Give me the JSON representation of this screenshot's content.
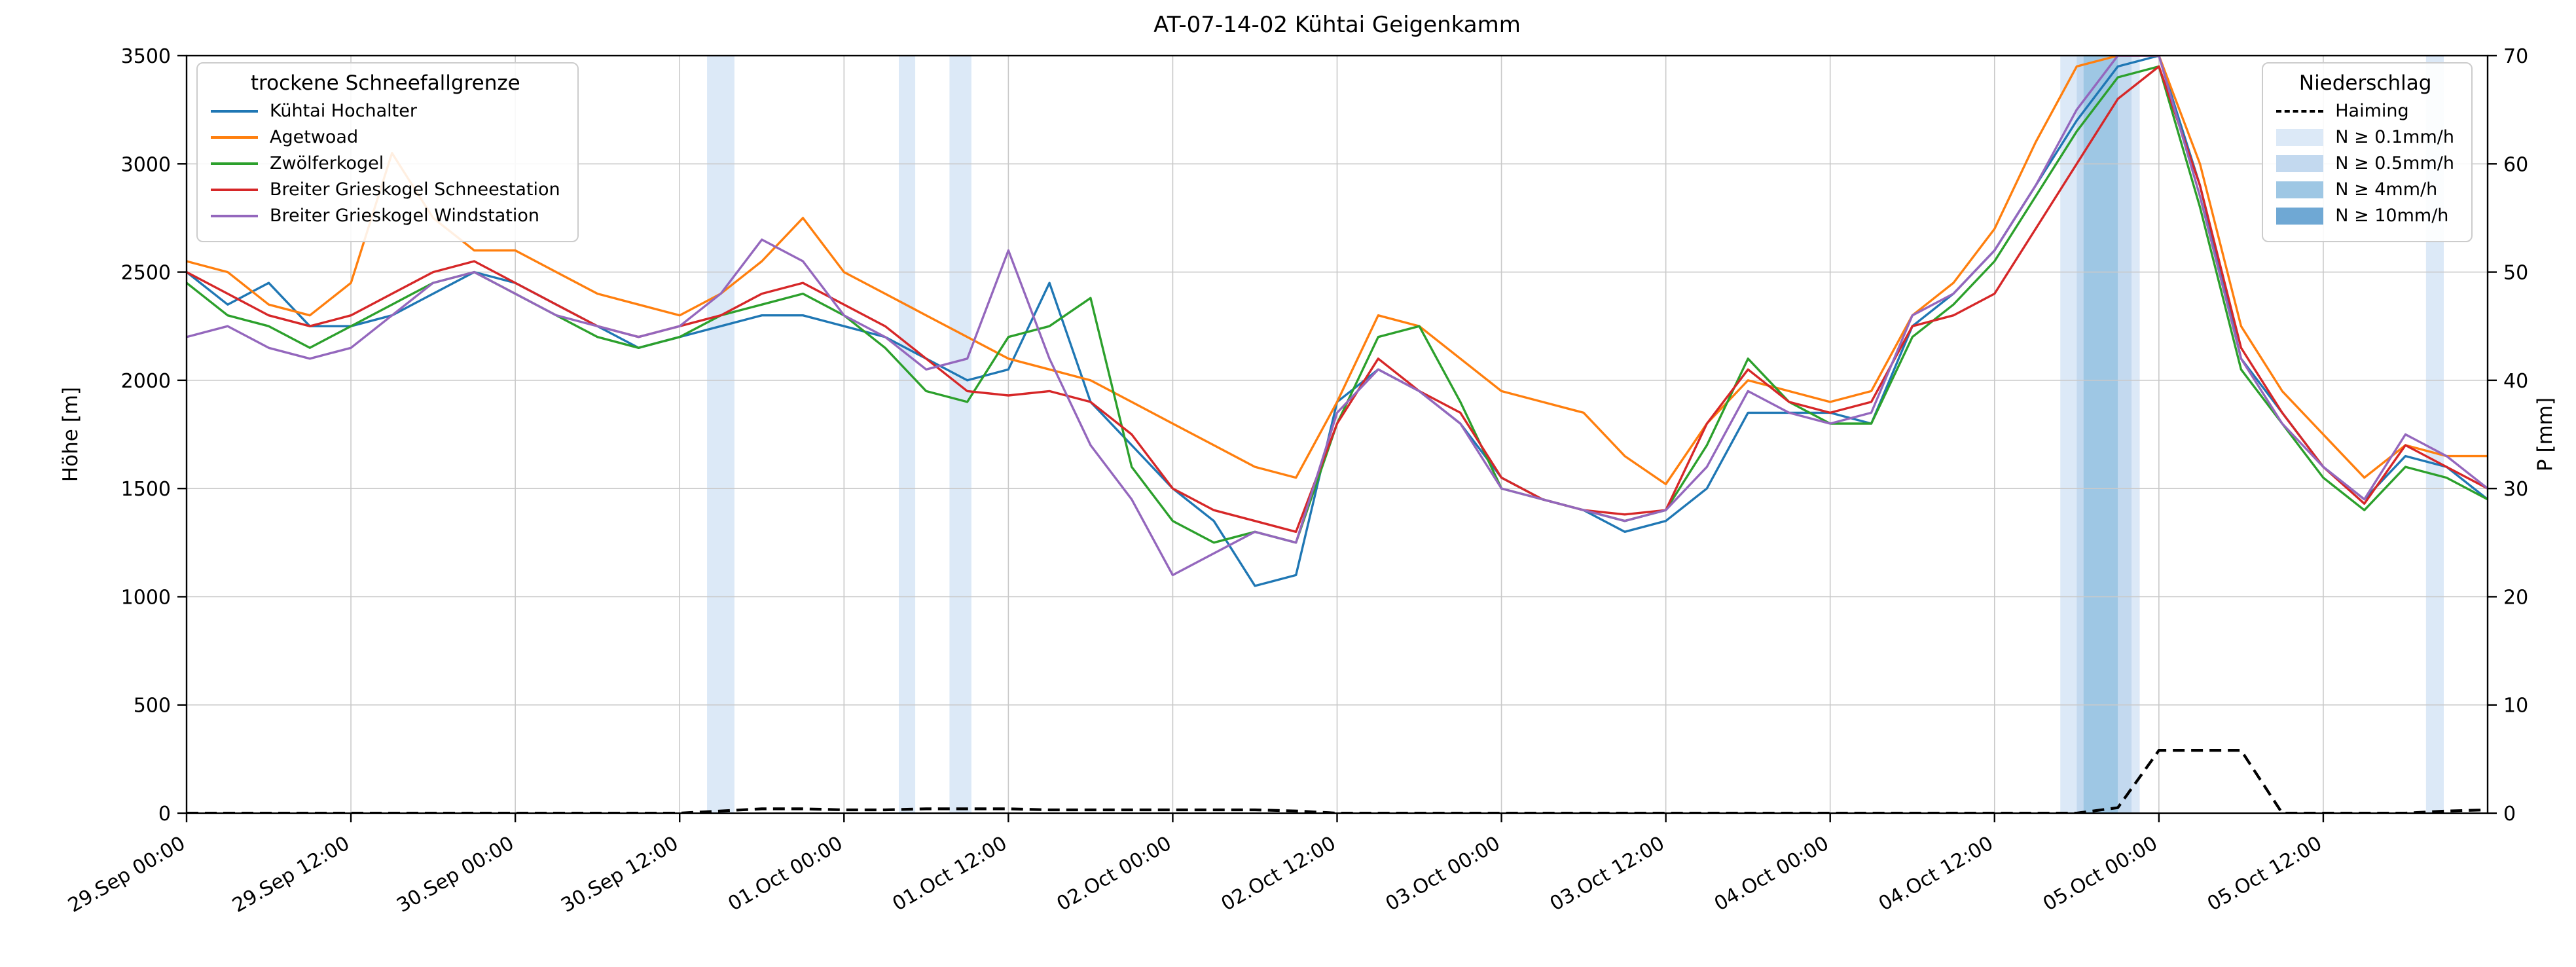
{
  "title": "AT-07-14-02 Kühtai Geigenkamm",
  "legend_sfg": {
    "title": "trockene Schneefallgrenze",
    "entries": [
      {
        "label": "Kühtai Hochalter",
        "color": "#1f77b4"
      },
      {
        "label": "Agetwoad",
        "color": "#ff7f0e"
      },
      {
        "label": "Zwölferkogel",
        "color": "#2ca02c"
      },
      {
        "label": "Breiter Grieskogel Schneestation",
        "color": "#d62728"
      },
      {
        "label": "Breiter Grieskogel Windstation",
        "color": "#9467bd"
      }
    ]
  },
  "legend_precip": {
    "title": "Niederschlag",
    "line_entry": {
      "label": "Haiming",
      "color": "#000000",
      "style": "dashed"
    },
    "band_entries": [
      {
        "label": "N ≥ 0.1mm/h",
        "color": "#dce9f7"
      },
      {
        "label": "N ≥ 0.5mm/h",
        "color": "#c3d9ef"
      },
      {
        "label": "N ≥ 4mm/h",
        "color": "#9ec7e4"
      },
      {
        "label": "N ≥ 10mm/h",
        "color": "#6fa8d4"
      }
    ]
  },
  "chart_data": {
    "type": "line",
    "title": "AT-07-14-02 Kühtai Geigenkamm",
    "grid": true,
    "x_unit": "hours since 29.Sep 00:00",
    "x_range": [
      0,
      168
    ],
    "x": [
      0,
      3,
      6,
      9,
      12,
      15,
      18,
      21,
      24,
      27,
      30,
      33,
      36,
      39,
      42,
      45,
      48,
      51,
      54,
      57,
      60,
      63,
      66,
      69,
      72,
      75,
      78,
      81,
      84,
      87,
      90,
      93,
      96,
      99,
      102,
      105,
      108,
      111,
      114,
      117,
      120,
      123,
      126,
      129,
      132,
      135,
      138,
      141,
      144,
      147,
      150,
      153,
      156,
      159,
      162,
      165,
      168
    ],
    "x_ticks": [
      {
        "h": 0,
        "label": "29.Sep 00:00"
      },
      {
        "h": 12,
        "label": "29.Sep 12:00"
      },
      {
        "h": 24,
        "label": "30.Sep 00:00"
      },
      {
        "h": 36,
        "label": "30.Sep 12:00"
      },
      {
        "h": 48,
        "label": "01.Oct 00:00"
      },
      {
        "h": 60,
        "label": "01.Oct 12:00"
      },
      {
        "h": 72,
        "label": "02.Oct 00:00"
      },
      {
        "h": 84,
        "label": "02.Oct 12:00"
      },
      {
        "h": 96,
        "label": "03.Oct 00:00"
      },
      {
        "h": 108,
        "label": "03.Oct 12:00"
      },
      {
        "h": 120,
        "label": "04.Oct 00:00"
      },
      {
        "h": 132,
        "label": "04.Oct 12:00"
      },
      {
        "h": 144,
        "label": "05.Oct 00:00"
      },
      {
        "h": 156,
        "label": "05.Oct 12:00"
      }
    ],
    "y_left": {
      "label": "Höhe [m]",
      "min": 0,
      "max": 3500,
      "step": 500
    },
    "y_right": {
      "label": "P [mm]",
      "min": 0,
      "max": 70,
      "step": 10
    },
    "series": [
      {
        "name": "Kühtai Hochalter",
        "color": "#1f77b4",
        "axis": "left",
        "values": [
          2500,
          2350,
          2450,
          2250,
          2250,
          2300,
          2400,
          2500,
          2450,
          2350,
          2250,
          2150,
          2200,
          2250,
          2300,
          2300,
          2250,
          2200,
          2100,
          2000,
          2050,
          2450,
          1900,
          1700,
          1500,
          1350,
          1050,
          1100,
          1900,
          2050,
          1950,
          1800,
          1550,
          1450,
          1400,
          1300,
          1350,
          1500,
          1850,
          1850,
          1850,
          1800,
          2250,
          2400,
          2600,
          2900,
          3200,
          3450,
          3500,
          2900,
          2100,
          1850,
          1600,
          1450,
          1650,
          1600,
          1450
        ]
      },
      {
        "name": "Agetwoad",
        "color": "#ff7f0e",
        "axis": "left",
        "values": [
          2550,
          2500,
          2350,
          2300,
          2450,
          3050,
          2750,
          2600,
          2600,
          2500,
          2400,
          2350,
          2300,
          2400,
          2550,
          2750,
          2500,
          2400,
          2300,
          2200,
          2100,
          2050,
          2000,
          1900,
          1800,
          1700,
          1600,
          1550,
          1900,
          2300,
          2250,
          2100,
          1950,
          1900,
          1850,
          1650,
          1520,
          1800,
          2000,
          1950,
          1900,
          1950,
          2300,
          2450,
          2700,
          3100,
          3450,
          3500,
          3500,
          3000,
          2250,
          1950,
          1750,
          1550,
          1700,
          1650,
          1650
        ]
      },
      {
        "name": "Zwölferkogel",
        "color": "#2ca02c",
        "axis": "left",
        "values": [
          2450,
          2300,
          2250,
          2150,
          2250,
          2350,
          2450,
          2500,
          2400,
          2300,
          2200,
          2150,
          2200,
          2300,
          2350,
          2400,
          2300,
          2150,
          1950,
          1900,
          2200,
          2250,
          2380,
          1600,
          1350,
          1250,
          1300,
          1250,
          1800,
          2200,
          2250,
          1900,
          1500,
          1450,
          1400,
          1350,
          1400,
          1700,
          2100,
          1900,
          1800,
          1800,
          2200,
          2350,
          2550,
          2850,
          3150,
          3400,
          3450,
          2800,
          2050,
          1800,
          1550,
          1400,
          1600,
          1550,
          1450
        ]
      },
      {
        "name": "Breiter Grieskogel Schneestation",
        "color": "#d62728",
        "axis": "left",
        "values": [
          2500,
          2400,
          2300,
          2250,
          2300,
          2400,
          2500,
          2550,
          2450,
          2350,
          2250,
          2200,
          2250,
          2300,
          2400,
          2450,
          2350,
          2250,
          2100,
          1950,
          1930,
          1950,
          1900,
          1750,
          1500,
          1400,
          1350,
          1300,
          1800,
          2100,
          1950,
          1850,
          1550,
          1450,
          1400,
          1380,
          1400,
          1800,
          2050,
          1900,
          1850,
          1900,
          2250,
          2300,
          2400,
          2700,
          3000,
          3300,
          3450,
          2900,
          2150,
          1850,
          1600,
          1430,
          1700,
          1600,
          1500
        ]
      },
      {
        "name": "Breiter Grieskogel Windstation",
        "color": "#9467bd",
        "axis": "left",
        "values": [
          2200,
          2250,
          2150,
          2100,
          2150,
          2300,
          2450,
          2500,
          2400,
          2300,
          2250,
          2200,
          2250,
          2400,
          2650,
          2550,
          2300,
          2200,
          2050,
          2100,
          2600,
          2100,
          1700,
          1450,
          1100,
          1200,
          1300,
          1250,
          1850,
          2050,
          1950,
          1800,
          1500,
          1450,
          1400,
          1350,
          1400,
          1600,
          1950,
          1850,
          1800,
          1850,
          2300,
          2400,
          2600,
          2900,
          3250,
          3500,
          3500,
          2850,
          2100,
          1800,
          1600,
          1450,
          1750,
          1650,
          1500
        ]
      }
    ],
    "precip_line": {
      "name": "Haiming",
      "color": "#000000",
      "dash": true,
      "axis": "right",
      "values": [
        0,
        0,
        0,
        0,
        0,
        0,
        0,
        0,
        0,
        0,
        0,
        0,
        0,
        0.2,
        0.4,
        0.4,
        0.3,
        0.3,
        0.4,
        0.4,
        0.4,
        0.3,
        0.3,
        0.3,
        0.3,
        0.3,
        0.3,
        0.2,
        0,
        0,
        0,
        0,
        0,
        0,
        0,
        0,
        0,
        0,
        0,
        0,
        0,
        0,
        0,
        0,
        0,
        0,
        0,
        0.5,
        5.8,
        5.8,
        5.8,
        0,
        0,
        0,
        0,
        0.2,
        0.3
      ]
    },
    "precip_bands": [
      {
        "start_h": 38,
        "end_h": 40,
        "intensity": "N ≥ 0.1mm/h",
        "color": "#dce9f7"
      },
      {
        "start_h": 52,
        "end_h": 53.2,
        "intensity": "N ≥ 0.1mm/h",
        "color": "#dce9f7"
      },
      {
        "start_h": 55.7,
        "end_h": 57.3,
        "intensity": "N ≥ 0.1mm/h",
        "color": "#dce9f7"
      },
      {
        "start_h": 136.8,
        "end_h": 142.6,
        "intensity": "N ≥ 0.1mm/h",
        "color": "#dce9f7"
      },
      {
        "start_h": 138,
        "end_h": 142,
        "intensity": "N ≥ 0.5mm/h",
        "color": "#c3d9ef"
      },
      {
        "start_h": 138.5,
        "end_h": 141,
        "intensity": "N ≥ 4mm/h",
        "color": "#9ec7e4"
      },
      {
        "start_h": 163.5,
        "end_h": 164.8,
        "intensity": "N ≥ 0.1mm/h",
        "color": "#dce9f7"
      }
    ]
  }
}
